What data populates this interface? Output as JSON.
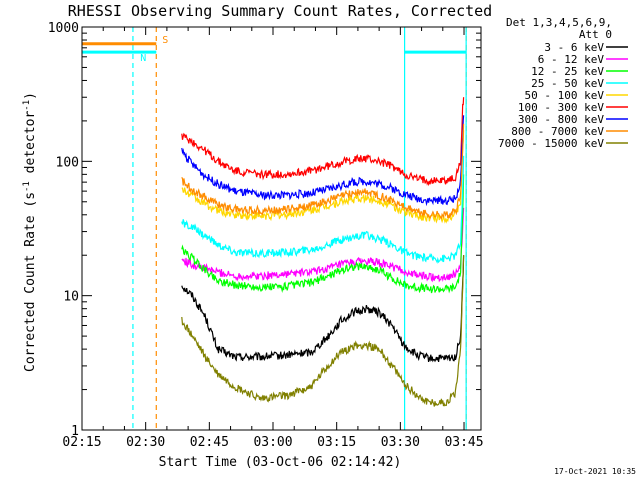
{
  "chart_data": {
    "type": "line",
    "title": "RHESSI Observing Summary Count Rates, Corrected",
    "xlabel": "Start Time (03-Oct-06 02:14:42)",
    "ylabel_main": "Corrected Count Rate (s",
    "ylabel_sup1": "-1",
    "ylabel_mid": " detector",
    "ylabel_sup2": "-1",
    "ylabel_end": ")",
    "yscale": "log",
    "ylim": [
      1,
      1000
    ],
    "xlim_minutes": [
      0,
      94
    ],
    "x_ticks": [
      {
        "label": "02:15",
        "minutes": 0
      },
      {
        "label": "02:30",
        "minutes": 15
      },
      {
        "label": "02:45",
        "minutes": 30
      },
      {
        "label": "03:00",
        "minutes": 45
      },
      {
        "label": "03:15",
        "minutes": 60
      },
      {
        "label": "03:30",
        "minutes": 75
      },
      {
        "label": "03:45",
        "minutes": 90
      }
    ],
    "y_ticks": [
      {
        "label": "1",
        "value": 1
      },
      {
        "label": "10",
        "value": 10
      },
      {
        "label": "100",
        "value": 100
      },
      {
        "label": "1000",
        "value": 1000
      }
    ],
    "legend_header": [
      "Det 1,3,4,5,6,9,",
      "Att 0"
    ],
    "legend_placement": "right",
    "series": [
      {
        "name": "3 - 6 keV",
        "color": "#000000",
        "points": [
          [
            23.5,
            12
          ],
          [
            26,
            10
          ],
          [
            29,
            7
          ],
          [
            32,
            4
          ],
          [
            36,
            3.5
          ],
          [
            42,
            3.5
          ],
          [
            48,
            3.6
          ],
          [
            54,
            3.8
          ],
          [
            58,
            5
          ],
          [
            61,
            6.5
          ],
          [
            64,
            7.5
          ],
          [
            67,
            8
          ],
          [
            70,
            7.5
          ],
          [
            73,
            6
          ],
          [
            76,
            4.2
          ],
          [
            79,
            3.6
          ],
          [
            82,
            3.4
          ],
          [
            86,
            3.4
          ],
          [
            88,
            3.5
          ],
          [
            89.2,
            5
          ],
          [
            89.7,
            12
          ],
          [
            89.9,
            20
          ]
        ]
      },
      {
        "name": "6 - 12 keV",
        "color": "#ff00ff",
        "points": [
          [
            23.5,
            18.5
          ],
          [
            26,
            17
          ],
          [
            29,
            16
          ],
          [
            32,
            15
          ],
          [
            36,
            14
          ],
          [
            42,
            14
          ],
          [
            48,
            14.5
          ],
          [
            54,
            15
          ],
          [
            58,
            16
          ],
          [
            61,
            17
          ],
          [
            64,
            17.8
          ],
          [
            67,
            18
          ],
          [
            70,
            17.5
          ],
          [
            73,
            16.5
          ],
          [
            76,
            15
          ],
          [
            79,
            14.2
          ],
          [
            82,
            13.8
          ],
          [
            86,
            13.8
          ],
          [
            88,
            14.5
          ],
          [
            89.2,
            17
          ],
          [
            89.7,
            30
          ],
          [
            89.9,
            45
          ]
        ]
      },
      {
        "name": "12 - 25 keV",
        "color": "#00ff00",
        "points": [
          [
            23.5,
            22
          ],
          [
            26,
            19
          ],
          [
            29,
            15.5
          ],
          [
            32,
            13
          ],
          [
            36,
            12
          ],
          [
            42,
            11.5
          ],
          [
            48,
            11.7
          ],
          [
            54,
            12.5
          ],
          [
            58,
            14
          ],
          [
            61,
            15.5
          ],
          [
            64,
            16.5
          ],
          [
            67,
            16.5
          ],
          [
            70,
            15.5
          ],
          [
            73,
            13.5
          ],
          [
            76,
            12
          ],
          [
            79,
            11.5
          ],
          [
            82,
            11.2
          ],
          [
            86,
            11.2
          ],
          [
            88,
            11.5
          ],
          [
            89.2,
            15
          ],
          [
            89.7,
            40
          ],
          [
            89.9,
            80
          ]
        ]
      },
      {
        "name": "25 - 50 keV",
        "color": "#00ffff",
        "points": [
          [
            23.5,
            35
          ],
          [
            26,
            32
          ],
          [
            29,
            28
          ],
          [
            32,
            24
          ],
          [
            36,
            21
          ],
          [
            42,
            20.5
          ],
          [
            48,
            21
          ],
          [
            54,
            22
          ],
          [
            58,
            24
          ],
          [
            61,
            26
          ],
          [
            64,
            27.5
          ],
          [
            67,
            28
          ],
          [
            70,
            26.5
          ],
          [
            73,
            24
          ],
          [
            76,
            21
          ],
          [
            79,
            19.5
          ],
          [
            82,
            19
          ],
          [
            86,
            19
          ],
          [
            88,
            20
          ],
          [
            89.2,
            25
          ],
          [
            89.7,
            60
          ],
          [
            89.9,
            110
          ]
        ]
      },
      {
        "name": "50 - 100 keV",
        "color": "#ffd700",
        "points": [
          [
            23.5,
            62
          ],
          [
            26,
            55
          ],
          [
            29,
            48
          ],
          [
            32,
            43
          ],
          [
            36,
            40
          ],
          [
            42,
            39
          ],
          [
            48,
            40
          ],
          [
            54,
            43
          ],
          [
            58,
            47
          ],
          [
            61,
            50
          ],
          [
            64,
            52
          ],
          [
            67,
            53
          ],
          [
            70,
            51
          ],
          [
            73,
            47
          ],
          [
            76,
            42
          ],
          [
            79,
            39
          ],
          [
            82,
            38
          ],
          [
            86,
            38
          ],
          [
            88,
            40
          ],
          [
            89.2,
            50
          ],
          [
            89.7,
            120
          ],
          [
            89.9,
            170
          ]
        ]
      },
      {
        "name": "100 - 300 keV",
        "color": "#ff0000",
        "points": [
          [
            23.5,
            155
          ],
          [
            26,
            140
          ],
          [
            29,
            120
          ],
          [
            32,
            100
          ],
          [
            36,
            85
          ],
          [
            42,
            80
          ],
          [
            48,
            80
          ],
          [
            54,
            85
          ],
          [
            58,
            92
          ],
          [
            61,
            98
          ],
          [
            64,
            103
          ],
          [
            67,
            105
          ],
          [
            70,
            100
          ],
          [
            73,
            92
          ],
          [
            76,
            80
          ],
          [
            79,
            74
          ],
          [
            82,
            72
          ],
          [
            86,
            72
          ],
          [
            88,
            75
          ],
          [
            89.2,
            100
          ],
          [
            89.7,
            250
          ],
          [
            89.9,
            300
          ]
        ]
      },
      {
        "name": "300 - 800 keV",
        "color": "#0000ff",
        "points": [
          [
            23.5,
            120
          ],
          [
            26,
            95
          ],
          [
            29,
            78
          ],
          [
            32,
            68
          ],
          [
            36,
            60
          ],
          [
            42,
            56
          ],
          [
            48,
            56
          ],
          [
            54,
            58
          ],
          [
            58,
            62
          ],
          [
            61,
            66
          ],
          [
            64,
            70
          ],
          [
            67,
            71
          ],
          [
            70,
            68
          ],
          [
            73,
            63
          ],
          [
            76,
            57
          ],
          [
            79,
            53
          ],
          [
            82,
            51
          ],
          [
            86,
            51
          ],
          [
            88,
            53
          ],
          [
            89.2,
            70
          ],
          [
            89.7,
            160
          ],
          [
            89.9,
            220
          ]
        ]
      },
      {
        "name": "800 - 7000 keV",
        "color": "#ff8c00",
        "points": [
          [
            23.5,
            72
          ],
          [
            26,
            62
          ],
          [
            29,
            54
          ],
          [
            32,
            48
          ],
          [
            36,
            44
          ],
          [
            42,
            43
          ],
          [
            48,
            44
          ],
          [
            54,
            47
          ],
          [
            58,
            51
          ],
          [
            61,
            55
          ],
          [
            64,
            58
          ],
          [
            67,
            59
          ],
          [
            70,
            56
          ],
          [
            73,
            51
          ],
          [
            76,
            46
          ],
          [
            79,
            42
          ],
          [
            82,
            40
          ],
          [
            86,
            40
          ],
          [
            88,
            42
          ],
          [
            89.2,
            55
          ],
          [
            89.7,
            130
          ],
          [
            89.9,
            190
          ]
        ]
      },
      {
        "name": "7000 - 15000 keV",
        "color": "#808000",
        "points": [
          [
            23.5,
            6.5
          ],
          [
            26,
            5
          ],
          [
            29,
            3.5
          ],
          [
            32,
            2.6
          ],
          [
            36,
            2.1
          ],
          [
            42,
            1.7
          ],
          [
            48,
            1.8
          ],
          [
            54,
            2.1
          ],
          [
            58,
            3
          ],
          [
            61,
            3.8
          ],
          [
            64,
            4.2
          ],
          [
            67,
            4.3
          ],
          [
            70,
            4
          ],
          [
            73,
            3
          ],
          [
            76,
            2.2
          ],
          [
            79,
            1.8
          ],
          [
            82,
            1.6
          ],
          [
            86,
            1.6
          ],
          [
            88,
            1.9
          ],
          [
            89.2,
            4
          ],
          [
            89.7,
            12
          ],
          [
            89.9,
            20
          ]
        ]
      }
    ],
    "attenuator_state": [
      {
        "start_minutes": 0,
        "end_minutes": 17.5,
        "level": 750,
        "color": "#ff8c00",
        "label": "S"
      },
      {
        "start_minutes": 0,
        "end_minutes": 17.5,
        "level": 650,
        "color": "#00ffff",
        "label": "N"
      },
      {
        "start_minutes": 76,
        "end_minutes": 90.5,
        "level": 650,
        "color": "#00ffff",
        "label": ""
      }
    ],
    "vertical_markers": [
      {
        "minutes": 17.5,
        "color": "#ff8c00",
        "style": "dashed"
      },
      {
        "minutes": 12,
        "color": "#00ffff",
        "style": "dashed"
      },
      {
        "minutes": 76,
        "color": "#00ffff",
        "style": "solid"
      },
      {
        "minutes": 90.5,
        "color": "#ff8c00",
        "style": "dashed"
      },
      {
        "minutes": 90.5,
        "color": "#00ffff",
        "style": "solid"
      }
    ],
    "timestamp": "17-Oct-2021 10:35"
  }
}
